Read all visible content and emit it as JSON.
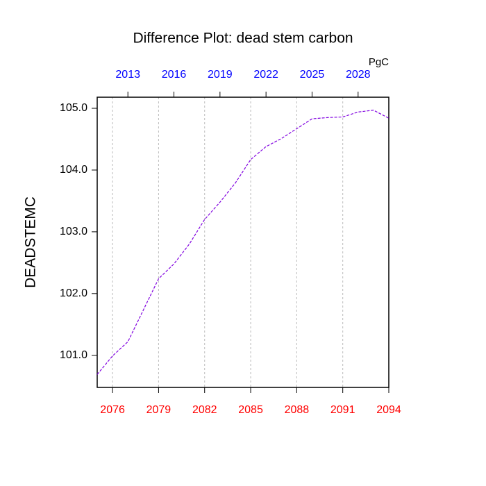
{
  "chart_data": {
    "type": "line",
    "title": "Difference Plot: dead stem carbon",
    "ylabel": "DEADSTEMC",
    "units": "PgC",
    "x": [
      2075,
      2076,
      2077,
      2078,
      2079,
      2080,
      2081,
      2082,
      2083,
      2084,
      2085,
      2086,
      2087,
      2088,
      2089,
      2090,
      2091,
      2092,
      2093,
      2094
    ],
    "series": [
      {
        "color": "#8000e0",
        "values": [
          100.69,
          100.99,
          101.22,
          101.73,
          102.24,
          102.48,
          102.8,
          103.2,
          103.48,
          103.79,
          104.17,
          104.38,
          104.51,
          104.67,
          104.83,
          104.85,
          104.86,
          104.94,
          104.97,
          104.84
        ]
      }
    ],
    "xlim": [
      2075,
      2094
    ],
    "xticks": [
      2076,
      2079,
      2082,
      2085,
      2088,
      2091,
      2094
    ],
    "xtick_color": "#ff0000",
    "x2lim": [
      2011,
      2030
    ],
    "x2ticks": [
      2013,
      2016,
      2019,
      2022,
      2025,
      2028
    ],
    "x2tick_color": "#0000ff",
    "ylim": [
      100.48,
      105.18
    ],
    "yticks": [
      {
        "value": 101,
        "label": "101.0"
      },
      {
        "value": 102,
        "label": "102.0"
      },
      {
        "value": 103,
        "label": "103.0"
      },
      {
        "value": 104,
        "label": "104.0"
      },
      {
        "value": 105,
        "label": "105.0"
      }
    ],
    "grid": true,
    "dashed": true
  }
}
